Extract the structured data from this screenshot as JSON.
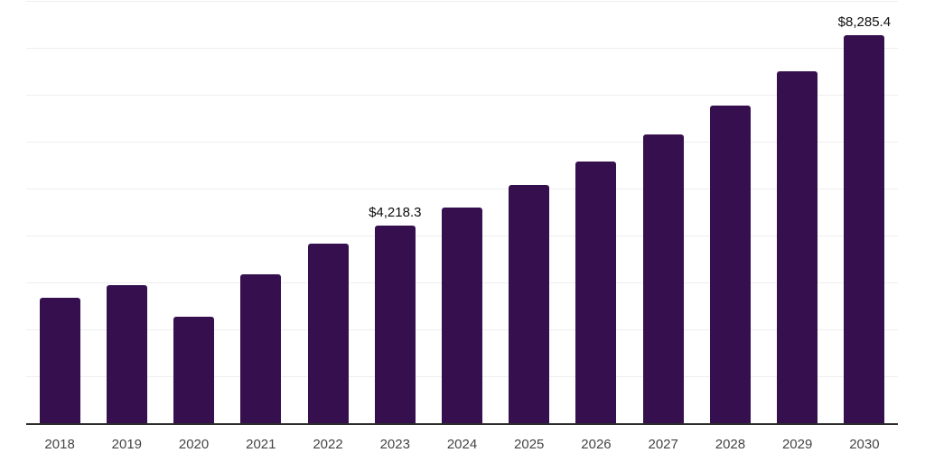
{
  "chart_data": {
    "type": "bar",
    "categories": [
      "2018",
      "2019",
      "2020",
      "2021",
      "2022",
      "2023",
      "2024",
      "2025",
      "2026",
      "2027",
      "2028",
      "2029",
      "2030"
    ],
    "values": [
      2690,
      2950,
      2290,
      3180,
      3850,
      4218.3,
      4620,
      5090,
      5600,
      6170,
      6790,
      7510,
      8285.4
    ],
    "data_labels": [
      {
        "category": "2023",
        "text": "$4,218.3"
      },
      {
        "category": "2030",
        "text": "$8,285.4"
      }
    ],
    "title": "",
    "xlabel": "",
    "ylabel": "",
    "ylim": [
      0,
      9000
    ],
    "gridline_step": 1000,
    "grid": "horizontal",
    "y_axis_labels_shown": false,
    "legend": "none",
    "colors": {
      "bar": "#36104e",
      "axis_line": "#2b2b2b",
      "gridline": "#eeeeee",
      "tick_label": "#444444",
      "data_label": "#0d0d0d",
      "background": "#ffffff"
    }
  }
}
